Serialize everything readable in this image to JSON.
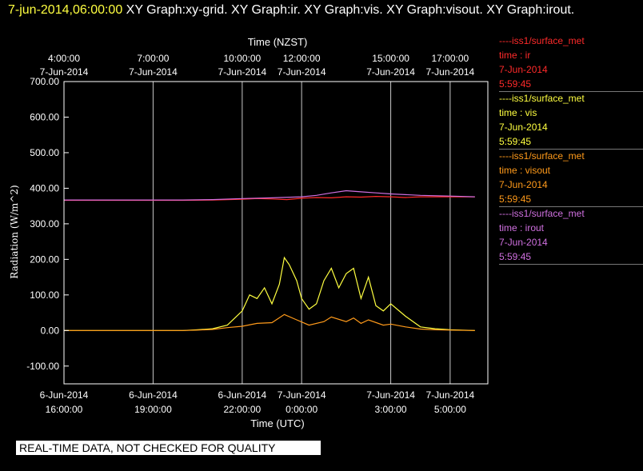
{
  "header": {
    "timestamp": "7-jun-2014,06:00:00",
    "graphs": " XY Graph:xy-grid.  XY Graph:ir.  XY Graph:vis.  XY Graph:visout.  XY Graph:irout."
  },
  "colors": {
    "background": "#000000",
    "ir": "#ff2a2a",
    "vis": "#ffff40",
    "visout": "#ff9a1a",
    "irout": "#d070e0",
    "grid": "#c8c8c8",
    "timestamp": "#ffff40"
  },
  "legend": [
    {
      "title": "----iss1/surface_met",
      "var": "time : ir",
      "date": "7-Jun-2014",
      "time": "5:59:45",
      "color": "#ff2a2a"
    },
    {
      "title": "----iss1/surface_met",
      "var": "time : vis",
      "date": "7-Jun-2014",
      "time": "5:59:45",
      "color": "#ffff40"
    },
    {
      "title": "----iss1/surface_met",
      "var": "time : visout",
      "date": "7-Jun-2014",
      "time": "5:59:45",
      "color": "#ff9a1a"
    },
    {
      "title": "----iss1/surface_met",
      "var": "time : irout",
      "date": "7-Jun-2014",
      "time": "5:59:45",
      "color": "#d070e0"
    }
  ],
  "banner": "REAL-TIME DATA, NOT CHECKED FOR QUALITY",
  "chart_data": {
    "type": "line",
    "title": "",
    "xlabel": "Time (UTC)",
    "xlabel_top": "Time (NZST)",
    "ylabel": "Radiation (W/m^2)",
    "xlim": [
      "2014-06-06T16:00",
      "2014-06-07T06:00"
    ],
    "ylim": [
      -150,
      700
    ],
    "grid": true,
    "yticks": [
      {
        "value": 700,
        "label": "700.00"
      },
      {
        "value": 600,
        "label": "600.00"
      },
      {
        "value": 500,
        "label": "500.00"
      },
      {
        "value": 400,
        "label": "400.00"
      },
      {
        "value": 300,
        "label": "300.00"
      },
      {
        "value": 200,
        "label": "200.00"
      },
      {
        "value": 100,
        "label": "100.00"
      },
      {
        "value": 0,
        "label": "0.00"
      },
      {
        "value": -100,
        "label": "-100.00"
      }
    ],
    "xticks_bottom": [
      {
        "t": "2014-06-06T16:00",
        "date": "6-Jun-2014",
        "time": "16:00:00"
      },
      {
        "t": "2014-06-06T19:00",
        "date": "6-Jun-2014",
        "time": "19:00:00"
      },
      {
        "t": "2014-06-06T22:00",
        "date": "6-Jun-2014",
        "time": "22:00:00"
      },
      {
        "t": "2014-06-07T00:00",
        "date": "7-Jun-2014",
        "time": "0:00:00"
      },
      {
        "t": "2014-06-07T03:00",
        "date": "7-Jun-2014",
        "time": "3:00:00"
      },
      {
        "t": "2014-06-07T05:00",
        "date": "7-Jun-2014",
        "time": "5:00:00"
      }
    ],
    "xticks_top": [
      {
        "t": "2014-06-06T16:00",
        "time": "4:00:00",
        "date": "7-Jun-2014"
      },
      {
        "t": "2014-06-06T19:00",
        "time": "7:00:00",
        "date": "7-Jun-2014"
      },
      {
        "t": "2014-06-06T22:00",
        "time": "10:00:00",
        "date": "7-Jun-2014"
      },
      {
        "t": "2014-06-07T00:00",
        "time": "12:00:00",
        "date": "7-Jun-2014"
      },
      {
        "t": "2014-06-07T03:00",
        "time": "15:00:00",
        "date": "7-Jun-2014"
      },
      {
        "t": "2014-06-07T05:00",
        "time": "17:00:00",
        "date": "7-Jun-2014"
      }
    ],
    "series": [
      {
        "name": "ir",
        "color": "#ff2a2a",
        "points": [
          [
            "2014-06-06T16:00",
            366
          ],
          [
            "2014-06-06T17:00",
            366
          ],
          [
            "2014-06-06T18:00",
            366
          ],
          [
            "2014-06-06T19:00",
            366
          ],
          [
            "2014-06-06T20:00",
            366
          ],
          [
            "2014-06-06T21:00",
            367
          ],
          [
            "2014-06-06T22:00",
            369
          ],
          [
            "2014-06-06T22:30",
            371
          ],
          [
            "2014-06-06T23:00",
            370
          ],
          [
            "2014-06-06T23:30",
            368
          ],
          [
            "2014-06-07T00:00",
            372
          ],
          [
            "2014-06-07T00:30",
            374
          ],
          [
            "2014-06-07T01:00",
            373
          ],
          [
            "2014-06-07T01:30",
            376
          ],
          [
            "2014-06-07T02:00",
            375
          ],
          [
            "2014-06-07T02:30",
            377
          ],
          [
            "2014-06-07T03:00",
            376
          ],
          [
            "2014-06-07T03:30",
            374
          ],
          [
            "2014-06-07T04:00",
            376
          ],
          [
            "2014-06-07T05:00",
            376
          ],
          [
            "2014-06-07T05:50",
            376
          ]
        ]
      },
      {
        "name": "vis",
        "color": "#ffff40",
        "points": [
          [
            "2014-06-06T16:00",
            0
          ],
          [
            "2014-06-06T18:00",
            0
          ],
          [
            "2014-06-06T20:00",
            0
          ],
          [
            "2014-06-06T20:30",
            2
          ],
          [
            "2014-06-06T21:00",
            5
          ],
          [
            "2014-06-06T21:30",
            15
          ],
          [
            "2014-06-06T22:00",
            55
          ],
          [
            "2014-06-06T22:15",
            100
          ],
          [
            "2014-06-06T22:30",
            90
          ],
          [
            "2014-06-06T22:45",
            120
          ],
          [
            "2014-06-06T23:00",
            75
          ],
          [
            "2014-06-06T23:15",
            130
          ],
          [
            "2014-06-06T23:25",
            205
          ],
          [
            "2014-06-06T23:35",
            185
          ],
          [
            "2014-06-06T23:50",
            140
          ],
          [
            "2014-06-07T00:00",
            90
          ],
          [
            "2014-06-07T00:15",
            60
          ],
          [
            "2014-06-07T00:30",
            75
          ],
          [
            "2014-06-07T00:45",
            140
          ],
          [
            "2014-06-07T01:00",
            175
          ],
          [
            "2014-06-07T01:15",
            120
          ],
          [
            "2014-06-07T01:30",
            160
          ],
          [
            "2014-06-07T01:45",
            175
          ],
          [
            "2014-06-07T02:00",
            90
          ],
          [
            "2014-06-07T02:15",
            150
          ],
          [
            "2014-06-07T02:30",
            70
          ],
          [
            "2014-06-07T02:45",
            55
          ],
          [
            "2014-06-07T03:00",
            75
          ],
          [
            "2014-06-07T03:30",
            40
          ],
          [
            "2014-06-07T04:00",
            10
          ],
          [
            "2014-06-07T04:30",
            5
          ],
          [
            "2014-06-07T05:00",
            2
          ],
          [
            "2014-06-07T05:50",
            0
          ]
        ]
      },
      {
        "name": "visout",
        "color": "#ff9a1a",
        "points": [
          [
            "2014-06-06T16:00",
            0
          ],
          [
            "2014-06-06T20:00",
            0
          ],
          [
            "2014-06-06T20:30",
            1
          ],
          [
            "2014-06-06T21:00",
            3
          ],
          [
            "2014-06-06T21:30",
            8
          ],
          [
            "2014-06-06T22:00",
            12
          ],
          [
            "2014-06-06T22:30",
            20
          ],
          [
            "2014-06-06T23:00",
            22
          ],
          [
            "2014-06-06T23:25",
            45
          ],
          [
            "2014-06-06T23:50",
            30
          ],
          [
            "2014-06-07T00:15",
            15
          ],
          [
            "2014-06-07T00:45",
            25
          ],
          [
            "2014-06-07T01:00",
            38
          ],
          [
            "2014-06-07T01:30",
            25
          ],
          [
            "2014-06-07T01:45",
            35
          ],
          [
            "2014-06-07T02:00",
            20
          ],
          [
            "2014-06-07T02:15",
            30
          ],
          [
            "2014-06-07T02:45",
            15
          ],
          [
            "2014-06-07T03:00",
            18
          ],
          [
            "2014-06-07T03:30",
            10
          ],
          [
            "2014-06-07T04:00",
            4
          ],
          [
            "2014-06-07T04:30",
            2
          ],
          [
            "2014-06-07T05:00",
            1
          ],
          [
            "2014-06-07T05:50",
            0
          ]
        ]
      },
      {
        "name": "irout",
        "color": "#d070e0",
        "points": [
          [
            "2014-06-06T16:00",
            367
          ],
          [
            "2014-06-06T18:00",
            367
          ],
          [
            "2014-06-06T20:00",
            367
          ],
          [
            "2014-06-06T21:00",
            368
          ],
          [
            "2014-06-06T22:00",
            371
          ],
          [
            "2014-06-06T23:00",
            373
          ],
          [
            "2014-06-07T00:00",
            376
          ],
          [
            "2014-06-07T00:30",
            380
          ],
          [
            "2014-06-07T01:00",
            387
          ],
          [
            "2014-06-07T01:30",
            393
          ],
          [
            "2014-06-07T02:00",
            390
          ],
          [
            "2014-06-07T02:30",
            387
          ],
          [
            "2014-06-07T03:00",
            384
          ],
          [
            "2014-06-07T04:00",
            380
          ],
          [
            "2014-06-07T05:00",
            378
          ],
          [
            "2014-06-07T05:50",
            376
          ]
        ]
      }
    ]
  }
}
